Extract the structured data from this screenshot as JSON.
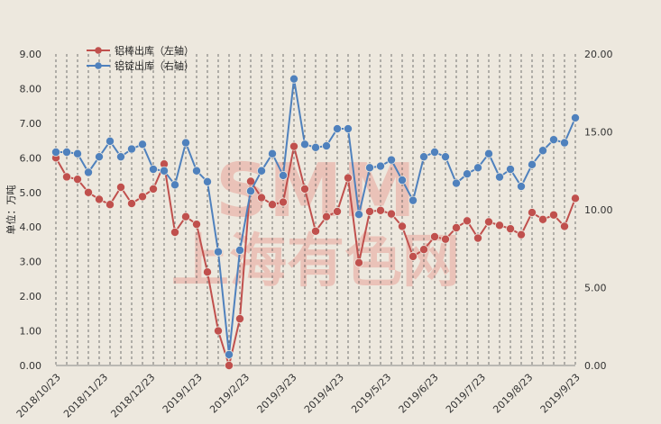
{
  "chart_data": {
    "type": "line",
    "ylabel_left": "单位：万吨",
    "ylim_left": [
      0,
      9
    ],
    "ylim_right": [
      0,
      20
    ],
    "y_ticks_left": [
      "0.00",
      "1.00",
      "2.00",
      "3.00",
      "4.00",
      "5.00",
      "6.00",
      "7.00",
      "8.00",
      "9.00"
    ],
    "y_ticks_right": [
      "0.00",
      "5.00",
      "10.00",
      "15.00",
      "20.00"
    ],
    "x_tick_labels": [
      "2018/10/23",
      "2018/11/23",
      "2018/12/23",
      "2019/1/23",
      "2019/2/23",
      "2019/3/23",
      "2019/4/23",
      "2019/5/23",
      "2019/6/23",
      "2019/7/23",
      "2019/8/23",
      "2019/9/23"
    ],
    "grid": "vertical dashed lines at each data point",
    "legend_position": "top-left",
    "watermark": {
      "line1": "SMM",
      "line2": "上海有色网"
    },
    "series": [
      {
        "name": "铝棒出库（左轴）",
        "axis": "left",
        "color": "#c0504d",
        "values": [
          6.0,
          5.45,
          5.38,
          5.0,
          4.8,
          4.65,
          5.15,
          4.68,
          4.88,
          5.1,
          5.82,
          3.85,
          4.3,
          4.08,
          2.7,
          1.0,
          0.0,
          1.35,
          5.32,
          4.85,
          4.65,
          4.72,
          6.33,
          5.1,
          3.88,
          4.3,
          4.45,
          5.42,
          2.97,
          4.45,
          4.48,
          4.38,
          4.02,
          3.15,
          3.35,
          3.72,
          3.65,
          3.98,
          4.18,
          3.68,
          4.15,
          4.05,
          3.95,
          3.78,
          4.42,
          4.22,
          4.35,
          4.02,
          4.83
        ]
      },
      {
        "name": "铝锭出库（右轴）",
        "axis": "right",
        "color": "#4f81bd",
        "values": [
          13.7,
          13.7,
          13.6,
          12.4,
          13.4,
          14.4,
          13.4,
          13.9,
          14.2,
          12.6,
          12.5,
          11.6,
          14.3,
          12.5,
          11.8,
          7.3,
          0.7,
          7.4,
          11.2,
          12.5,
          13.6,
          12.2,
          18.4,
          14.2,
          14.0,
          14.1,
          15.2,
          15.2,
          9.7,
          12.7,
          12.8,
          13.2,
          11.9,
          10.6,
          13.4,
          13.7,
          13.4,
          11.7,
          12.3,
          12.7,
          13.6,
          12.1,
          12.6,
          11.5,
          12.9,
          13.8,
          14.5,
          14.3,
          15.9
        ]
      }
    ]
  }
}
